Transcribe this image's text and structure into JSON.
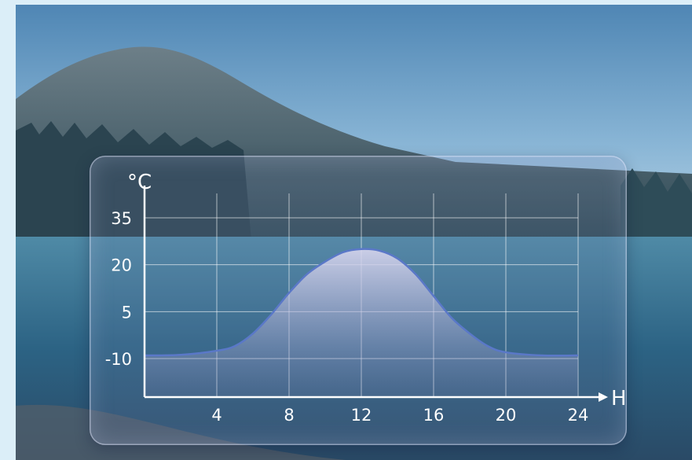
{
  "chart_data": {
    "type": "area",
    "ylabel": "°C",
    "xlabel": "H",
    "x_ticks": [
      4,
      8,
      12,
      16,
      20,
      24
    ],
    "y_ticks": [
      35,
      20,
      5,
      -10
    ],
    "xlim": [
      0,
      24
    ],
    "ylim": [
      -10,
      35
    ],
    "grid": true,
    "series": [
      {
        "x": [
          0,
          2,
          4,
          5,
          6,
          7,
          8,
          9,
          10,
          11,
          12,
          13,
          14,
          15,
          16,
          17,
          18,
          19,
          20,
          22,
          24
        ],
        "values": [
          -9,
          -8.8,
          -7.5,
          -6,
          -2,
          4,
          11,
          17,
          21,
          24,
          25,
          24.5,
          22,
          17,
          10,
          3,
          -2,
          -6,
          -8,
          -9,
          -9
        ]
      }
    ],
    "colors": {
      "line": "#5a78c8",
      "grid": "#ffffff",
      "axis": "#ffffff",
      "text": "#ffffff"
    }
  }
}
